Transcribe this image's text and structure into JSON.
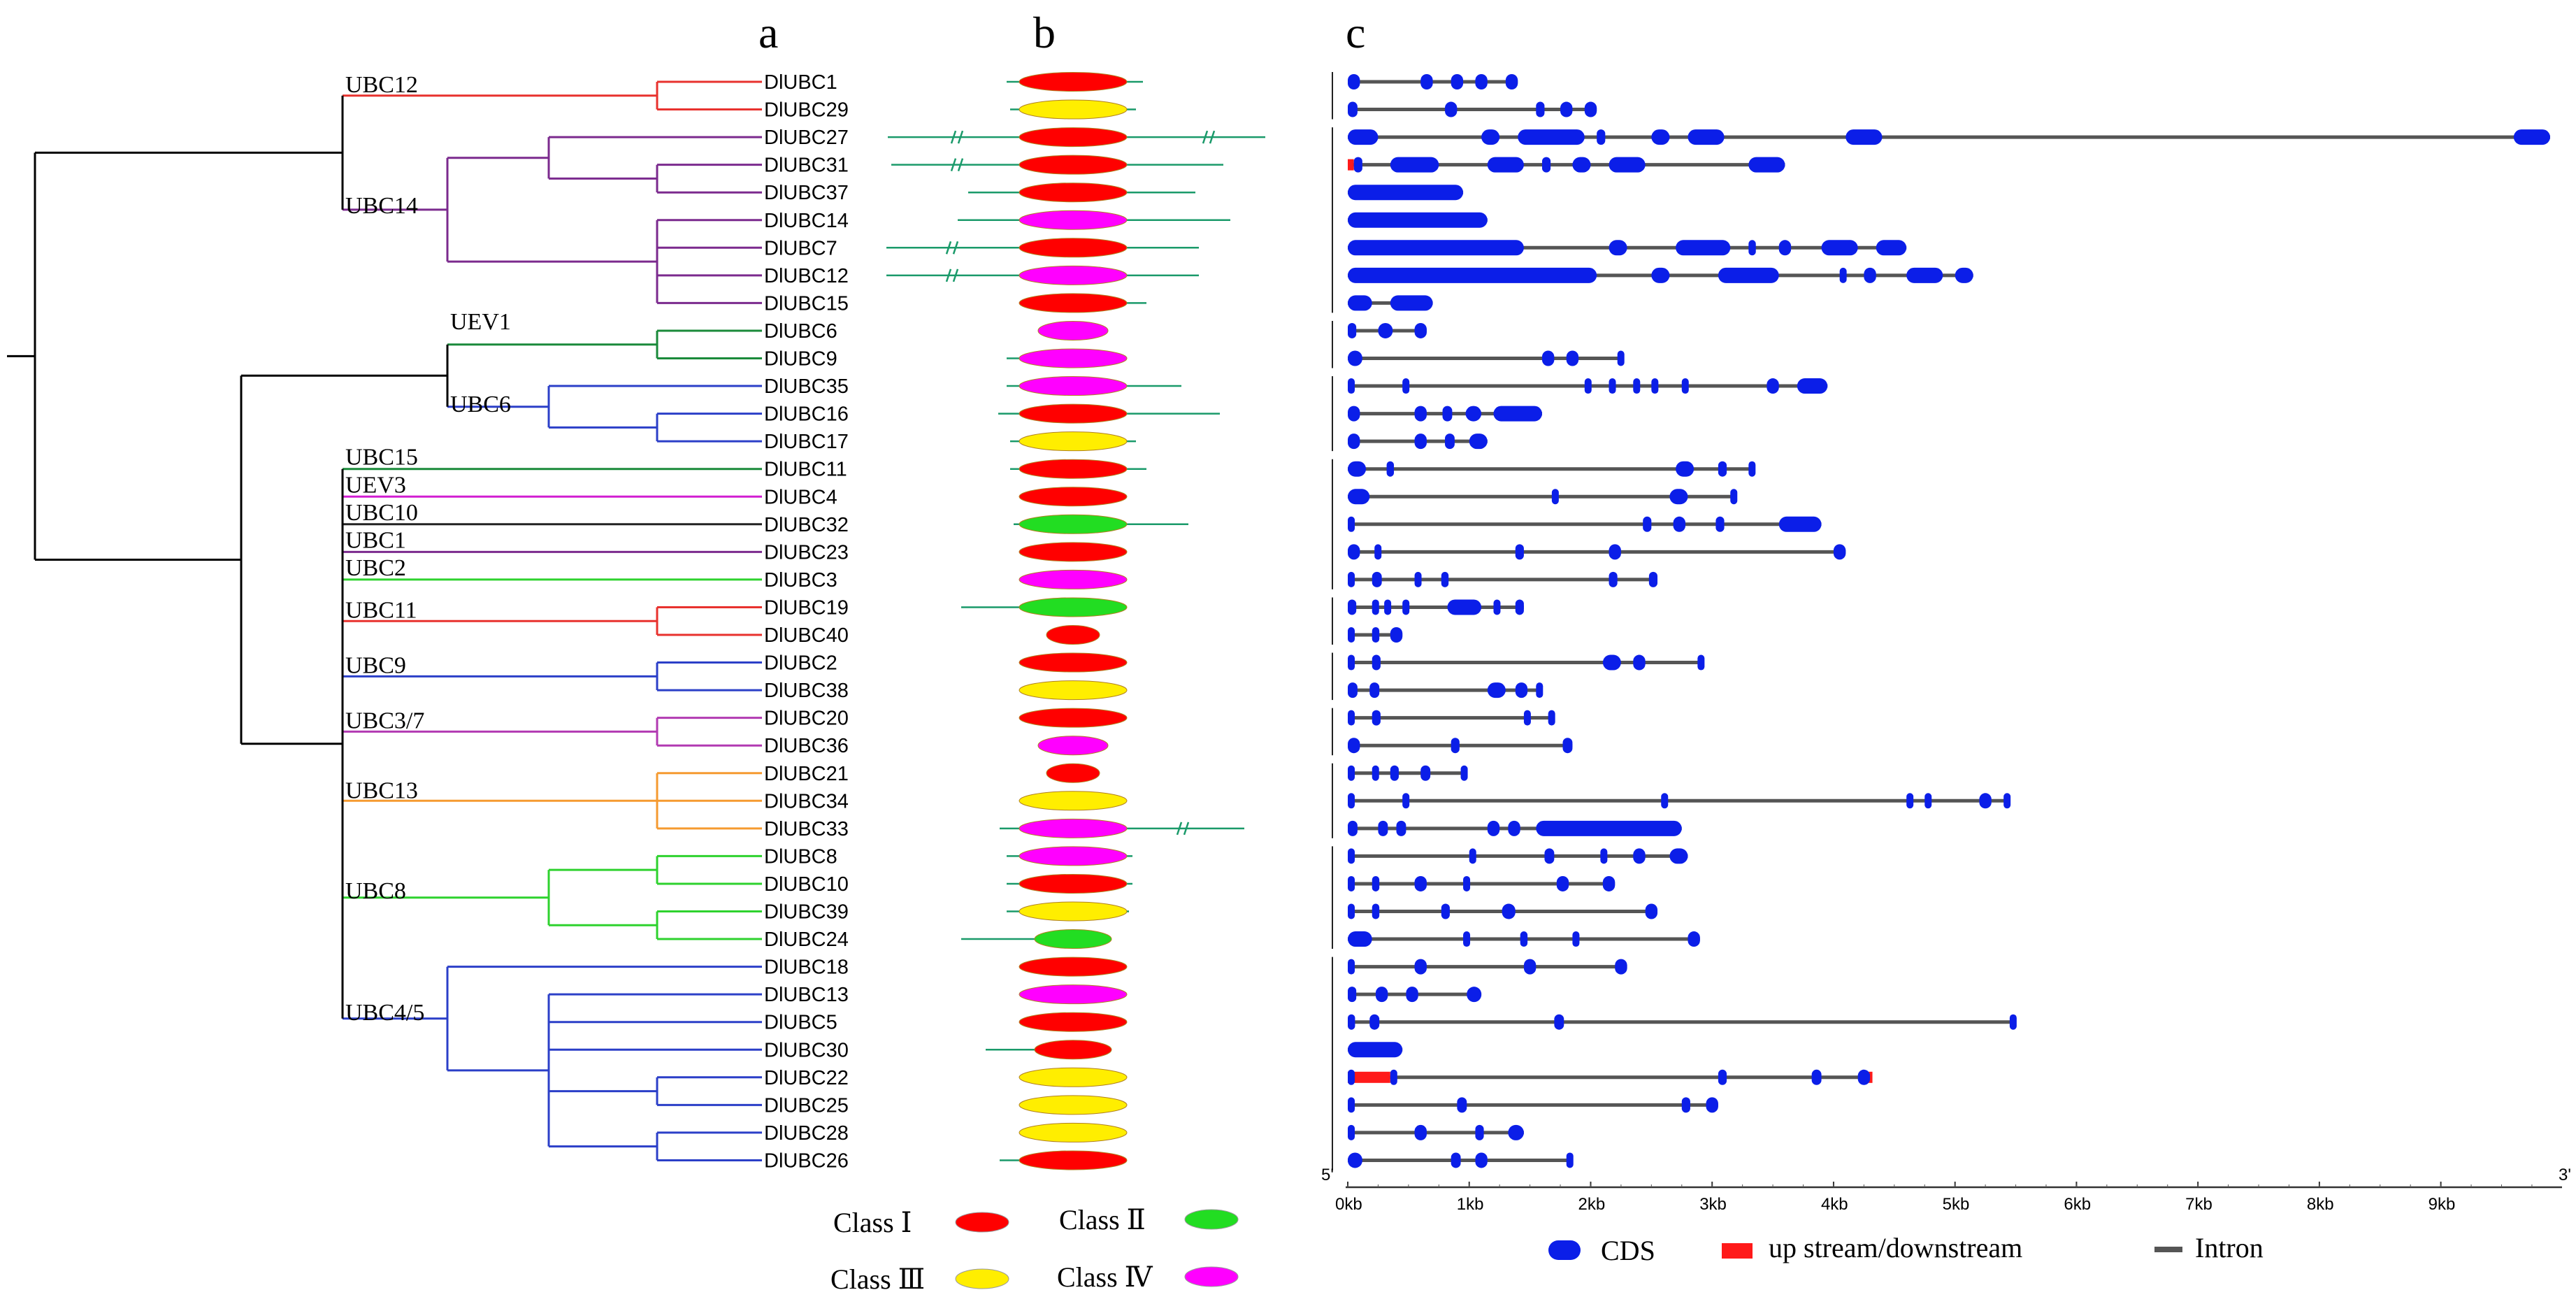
{
  "panels": {
    "a": "a",
    "b": "b",
    "c": "c"
  },
  "genes": [
    "DlUBC1",
    "DlUBC29",
    "DlUBC27",
    "DlUBC31",
    "DlUBC37",
    "DlUBC14",
    "DlUBC7",
    "DlUBC12",
    "DlUBC15",
    "DlUBC6",
    "DlUBC9",
    "DlUBC35",
    "DlUBC16",
    "DlUBC17",
    "DlUBC11",
    "DlUBC4",
    "DlUBC32",
    "DlUBC23",
    "DlUBC3",
    "DlUBC19",
    "DlUBC40",
    "DlUBC2",
    "DlUBC38",
    "DlUBC20",
    "DlUBC36",
    "DlUBC21",
    "DlUBC34",
    "DlUBC33",
    "DlUBC8",
    "DlUBC10",
    "DlUBC39",
    "DlUBC24",
    "DlUBC18",
    "DlUBC13",
    "DlUBC5",
    "DlUBC30",
    "DlUBC22",
    "DlUBC25",
    "DlUBC28",
    "DlUBC26"
  ],
  "groups": [
    {
      "name": "UBC12",
      "color": "#e8322e",
      "leaves": [
        0,
        1
      ]
    },
    {
      "name": "UBC14",
      "color": "#7b2a8e",
      "leaves": [
        2,
        3,
        4,
        5,
        6,
        7,
        8
      ]
    },
    {
      "name": "UEV1",
      "color": "#1a8a3a",
      "leaves": [
        9,
        10
      ]
    },
    {
      "name": "UBC6",
      "color": "#2b3fc8",
      "leaves": [
        11,
        12,
        13
      ]
    },
    {
      "name": "UBC15",
      "color": "#1a8a3a",
      "leaves": [
        14
      ]
    },
    {
      "name": "UEV3",
      "color": "#d21ed2",
      "leaves": [
        15
      ]
    },
    {
      "name": "UBC10",
      "color": "#222222",
      "leaves": [
        16
      ]
    },
    {
      "name": "UBC1",
      "color": "#7b2a8e",
      "leaves": [
        17
      ]
    },
    {
      "name": "UBC2",
      "color": "#2ed22e",
      "leaves": [
        18
      ]
    },
    {
      "name": "UBC11",
      "color": "#e8322e",
      "leaves": [
        19,
        20
      ]
    },
    {
      "name": "UBC9",
      "color": "#2b3fc8",
      "leaves": [
        21,
        22
      ]
    },
    {
      "name": "UBC3/7",
      "color": "#b23ab2",
      "leaves": [
        23,
        24
      ]
    },
    {
      "name": "UBC13",
      "color": "#f59a30",
      "leaves": [
        25,
        26,
        27
      ]
    },
    {
      "name": "UBC8",
      "color": "#2ed22e",
      "leaves": [
        28,
        29,
        30,
        31
      ]
    },
    {
      "name": "UBC4/5",
      "color": "#2b3fc8",
      "leaves": [
        32,
        33,
        34,
        35,
        36,
        37,
        38,
        39
      ]
    }
  ],
  "domain_classes": [
    "I",
    "III",
    "I",
    "I",
    "I",
    "IV",
    "I",
    "IV",
    "I",
    "IV",
    "IV",
    "IV",
    "I",
    "III",
    "I",
    "I",
    "II",
    "I",
    "IV",
    "II",
    "I",
    "I",
    "III",
    "I",
    "IV",
    "I",
    "III",
    "IV",
    "IV",
    "I",
    "III",
    "II",
    "I",
    "IV",
    "I",
    "I",
    "III",
    "III",
    "III",
    "I"
  ],
  "class_colors": {
    "I": "#ff0000",
    "II": "#22dd22",
    "III": "#ffee00",
    "IV": "#ff00ff"
  },
  "legend_b": [
    {
      "label": "Class Ⅰ",
      "cls": "I"
    },
    {
      "label": "Class Ⅱ",
      "cls": "II"
    },
    {
      "label": "Class Ⅲ",
      "cls": "III"
    },
    {
      "label": "Class Ⅳ",
      "cls": "IV"
    }
  ],
  "axis": {
    "unit_max": 10,
    "ticks": [
      "0kb",
      "1kb",
      "2kb",
      "3kb",
      "4kb",
      "5kb",
      "6kb",
      "7kb",
      "8kb",
      "9kb"
    ],
    "left_end": "5'",
    "right_end": "3'"
  },
  "legend_c": {
    "cds": "CDS",
    "utr": "up stream/downstream",
    "intron": "Intron"
  },
  "colors": {
    "cds": "#0b1ee8",
    "utr": "#ff1a1a",
    "intron": "#555555",
    "motif": "#1a9a6a"
  },
  "gene_lengths_kb": [
    1.4,
    2.05,
    9.9,
    3.6,
    0.95,
    1.15,
    4.6,
    5.15,
    0.7,
    0.65,
    2.25,
    3.95,
    1.6,
    1.15,
    3.35,
    3.2,
    3.9,
    4.1,
    2.55,
    1.45,
    0.45,
    2.9,
    1.6,
    1.7,
    1.85,
    0.95,
    5.45,
    2.75,
    2.8,
    2.2,
    2.55,
    2.9,
    2.3,
    1.1,
    5.5,
    0.45,
    4.3,
    3.05,
    1.45,
    1.85
  ]
}
